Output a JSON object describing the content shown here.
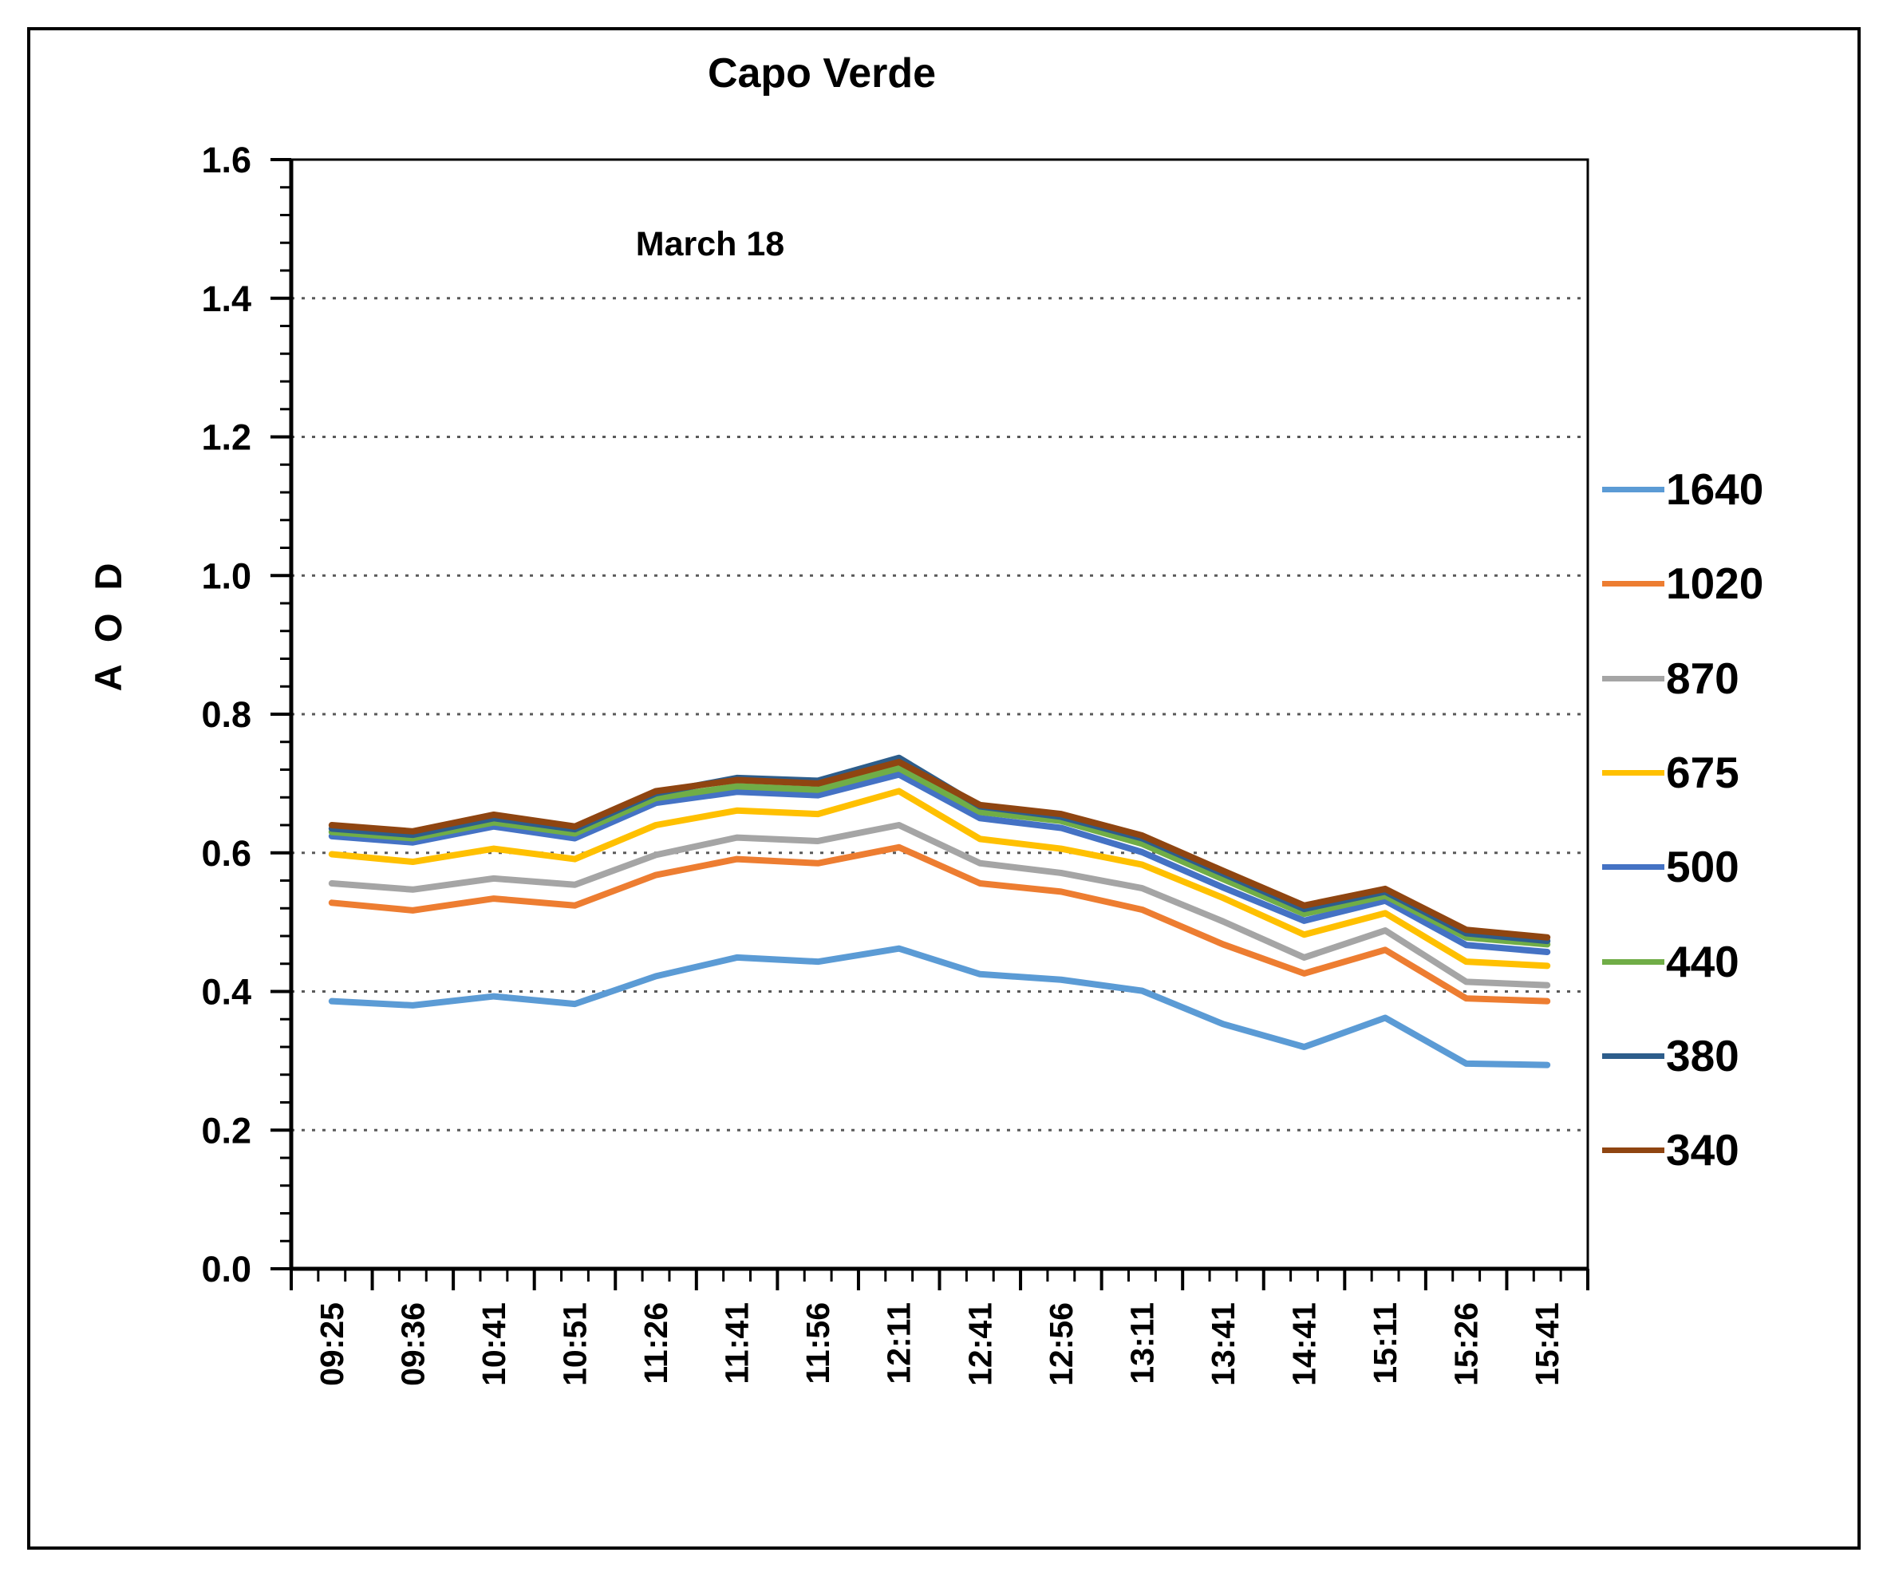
{
  "title": "Capo Verde",
  "subtitle": "March 18",
  "y_axis_title": "A O D",
  "chart_data": {
    "type": "line",
    "title": "Capo Verde",
    "subtitle": "March 18",
    "xlabel": "",
    "ylabel": "A O D",
    "ylim": [
      0.0,
      1.6
    ],
    "y_major_step": 0.2,
    "y_minor_step": 0.04,
    "y_tick_labels": [
      "0.0",
      "0.2",
      "0.4",
      "0.6",
      "0.8",
      "1.0",
      "1.2",
      "1.4",
      "1.6"
    ],
    "gridline_values": [
      0.2,
      0.4,
      0.6,
      0.8,
      1.0,
      1.2,
      1.4
    ],
    "grid_style": "dotted",
    "grid_color": "#595959",
    "axis_color": "#000000",
    "legend_position": "right",
    "categories": [
      "09:25",
      "09:36",
      "10:41",
      "10:51",
      "11:26",
      "11:41",
      "11:56",
      "12:11",
      "12:41",
      "12:56",
      "13:11",
      "13:41",
      "14:41",
      "15:11",
      "15:26",
      "15:41"
    ],
    "series": [
      {
        "name": "1640",
        "color": "#5B9BD5",
        "values": [
          0.386,
          0.38,
          0.393,
          0.382,
          0.422,
          0.449,
          0.443,
          0.462,
          0.425,
          0.417,
          0.401,
          0.353,
          0.32,
          0.362,
          0.296,
          0.294
        ]
      },
      {
        "name": "1020",
        "color": "#ED7D31",
        "values": [
          0.528,
          0.517,
          0.534,
          0.524,
          0.568,
          0.591,
          0.585,
          0.608,
          0.556,
          0.544,
          0.518,
          0.468,
          0.426,
          0.46,
          0.39,
          0.386
        ]
      },
      {
        "name": "870",
        "color": "#A5A5A5",
        "values": [
          0.556,
          0.547,
          0.563,
          0.554,
          0.597,
          0.622,
          0.617,
          0.64,
          0.585,
          0.571,
          0.549,
          0.501,
          0.449,
          0.488,
          0.414,
          0.409
        ]
      },
      {
        "name": "675",
        "color": "#FFC000",
        "values": [
          0.598,
          0.587,
          0.606,
          0.591,
          0.64,
          0.661,
          0.656,
          0.689,
          0.62,
          0.606,
          0.583,
          0.535,
          0.482,
          0.513,
          0.443,
          0.437
        ]
      },
      {
        "name": "500",
        "color": "#4472C4",
        "values": [
          0.624,
          0.615,
          0.638,
          0.621,
          0.672,
          0.688,
          0.683,
          0.713,
          0.65,
          0.636,
          0.601,
          0.55,
          0.502,
          0.531,
          0.467,
          0.457
        ]
      },
      {
        "name": "440",
        "color": "#70AD47",
        "values": [
          0.63,
          0.621,
          0.644,
          0.628,
          0.679,
          0.696,
          0.691,
          0.722,
          0.659,
          0.646,
          0.613,
          0.562,
          0.512,
          0.538,
          0.478,
          0.468
        ]
      },
      {
        "name": "380",
        "color": "#2D5D8B",
        "values": [
          0.635,
          0.626,
          0.65,
          0.634,
          0.686,
          0.708,
          0.704,
          0.737,
          0.667,
          0.652,
          0.621,
          0.57,
          0.519,
          0.544,
          0.484,
          0.473
        ]
      },
      {
        "name": "340",
        "color": "#8F4511",
        "values": [
          0.64,
          0.631,
          0.655,
          0.638,
          0.689,
          0.705,
          0.7,
          0.731,
          0.669,
          0.656,
          0.625,
          0.574,
          0.524,
          0.548,
          0.489,
          0.478
        ]
      }
    ]
  }
}
